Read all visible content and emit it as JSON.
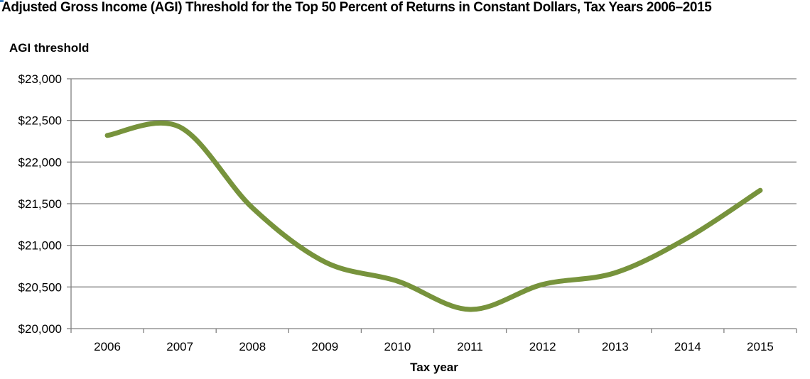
{
  "chart_data": {
    "type": "line",
    "title": "Adjusted Gross Income (AGI) Threshold for the Top 50 Percent of Returns in Constant Dollars, Tax Years 2006–2015",
    "ylabel": "AGI threshold",
    "xlabel": "Tax year",
    "x": [
      "2006",
      "2007",
      "2008",
      "2009",
      "2010",
      "2011",
      "2012",
      "2013",
      "2014",
      "2015"
    ],
    "series": [
      {
        "values": [
          22320,
          22420,
          21450,
          20800,
          20570,
          20230,
          20530,
          20670,
          21090,
          21660
        ],
        "color": "#77933c"
      }
    ],
    "ylim": [
      20000,
      23000
    ],
    "yticks": [
      20000,
      20500,
      21000,
      21500,
      22000,
      22500,
      23000
    ],
    "ytick_labels": [
      "$20,000",
      "$20,500",
      "$21,000",
      "$21,500",
      "$22,000",
      "$22,500",
      "$23,000"
    ],
    "grid": true,
    "smooth": true,
    "colors": {
      "line": "#77933c",
      "gridline": "#808080",
      "axis": "#808080"
    }
  }
}
